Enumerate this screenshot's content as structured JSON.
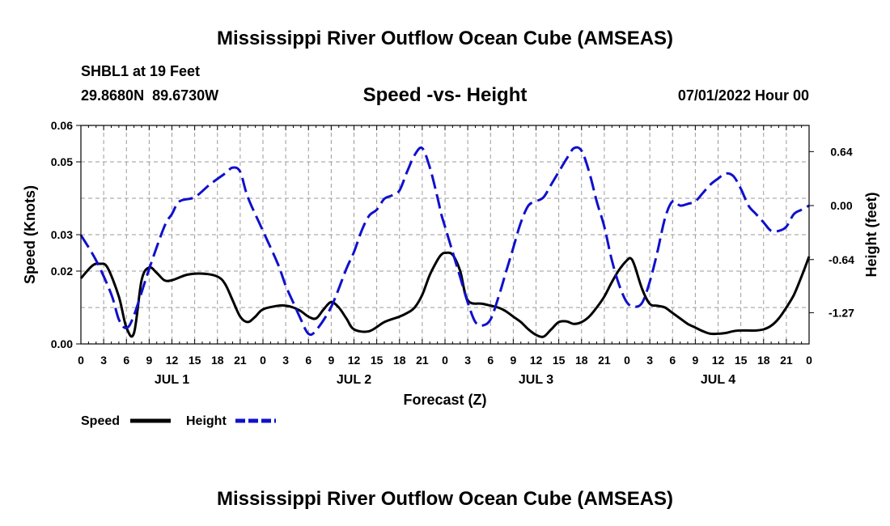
{
  "page": {
    "title": "Mississippi River Outflow Ocean Cube (AMSEAS)",
    "title_repeat": "Mississippi River Outflow Ocean Cube (AMSEAS)",
    "station": "SHBL1 at 19 Feet",
    "coords": "29.8680N  89.6730W",
    "subtitle": "Speed -vs- Height",
    "datetime": "07/01/2022 Hour 00"
  },
  "chart_data": {
    "type": "line",
    "title": "Speed -vs- Height",
    "xlabel": "Forecast (Z)",
    "ylabel": "Speed (Knots)",
    "y2label": "Height (feet)",
    "x_range": [
      0,
      96
    ],
    "ylim": [
      0,
      0.06
    ],
    "y2lim": [
      -1.64,
      0.95
    ],
    "grid": true,
    "x_tick_values": [
      0,
      3,
      6,
      9,
      12,
      15,
      18,
      21,
      24,
      27,
      30,
      33,
      36,
      39,
      42,
      45,
      48,
      51,
      54,
      57,
      60,
      63,
      66,
      69,
      72,
      75,
      78,
      81,
      84,
      87,
      90,
      93,
      96
    ],
    "x_tick_labels": [
      "0",
      "3",
      "6",
      "9",
      "12",
      "15",
      "18",
      "21",
      "0",
      "3",
      "6",
      "9",
      "12",
      "15",
      "18",
      "21",
      "0",
      "3",
      "6",
      "9",
      "12",
      "15",
      "18",
      "21",
      "0",
      "3",
      "6",
      "9",
      "12",
      "15",
      "18",
      "21",
      "0"
    ],
    "day_labels": [
      {
        "x": 12,
        "label": "JUL 1"
      },
      {
        "x": 36,
        "label": "JUL 2"
      },
      {
        "x": 60,
        "label": "JUL 3"
      },
      {
        "x": 84,
        "label": "JUL 4"
      }
    ],
    "y_ticks": [
      0,
      0.02,
      0.03,
      0.05,
      0.06
    ],
    "y_tick_labels": [
      "0.00",
      "0.02",
      "0.03",
      "0.05",
      "0.06"
    ],
    "y2_ticks": [
      0.64,
      0.0,
      -0.64,
      -1.27
    ],
    "y2_tick_labels": [
      "0.64",
      "0.00",
      "-0.64",
      "-1.27"
    ],
    "legend": [
      {
        "name": "Speed",
        "color": "#000000",
        "style": "solid"
      },
      {
        "name": "Height",
        "color": "#1010cc",
        "style": "dashed"
      }
    ],
    "series": [
      {
        "name": "Speed",
        "axis": "left",
        "color": "#000000",
        "style": "solid",
        "x": [
          0,
          1.5,
          2.5,
          3.5,
          5,
          6,
          7,
          8,
          9,
          10,
          11,
          12,
          14,
          16,
          18,
          19,
          20,
          21,
          22,
          23,
          24,
          26,
          27,
          28,
          29,
          30,
          31,
          32,
          33,
          34,
          35,
          36,
          38,
          40,
          42,
          43,
          44,
          45,
          46,
          47,
          47.5,
          48,
          49,
          50,
          51,
          53,
          55,
          56,
          57,
          58,
          59,
          60,
          61,
          62,
          63,
          64,
          65,
          66,
          67,
          68,
          69,
          70,
          71,
          72,
          72.5,
          73,
          74,
          75,
          76,
          77,
          78,
          79,
          80,
          81,
          82,
          83,
          84,
          85,
          86,
          87,
          88,
          89,
          90,
          91,
          92,
          93,
          94,
          95,
          96
        ],
        "values": [
          0.018,
          0.0215,
          0.022,
          0.021,
          0.013,
          0.0045,
          0.003,
          0.0175,
          0.021,
          0.0195,
          0.0175,
          0.0175,
          0.019,
          0.0193,
          0.0185,
          0.0165,
          0.012,
          0.0075,
          0.006,
          0.0075,
          0.0095,
          0.0105,
          0.0105,
          0.01,
          0.009,
          0.0075,
          0.007,
          0.0095,
          0.0115,
          0.01,
          0.007,
          0.004,
          0.0035,
          0.006,
          0.0075,
          0.0085,
          0.01,
          0.0135,
          0.019,
          0.023,
          0.0245,
          0.025,
          0.0245,
          0.02,
          0.012,
          0.011,
          0.01,
          0.009,
          0.0075,
          0.006,
          0.004,
          0.0025,
          0.002,
          0.004,
          0.006,
          0.0062,
          0.0055,
          0.006,
          0.0075,
          0.01,
          0.013,
          0.017,
          0.0205,
          0.023,
          0.0235,
          0.0215,
          0.015,
          0.011,
          0.0105,
          0.01,
          0.0085,
          0.007,
          0.0055,
          0.0045,
          0.0035,
          0.0028,
          0.0028,
          0.003,
          0.0035,
          0.0037,
          0.0037,
          0.0037,
          0.004,
          0.005,
          0.007,
          0.01,
          0.0135,
          0.0185,
          0.024
        ]
      },
      {
        "name": "Height",
        "axis": "right",
        "color": "#1010cc",
        "style": "dashed",
        "x": [
          0,
          2,
          4,
          5,
          6,
          7,
          9,
          11,
          12,
          13,
          15,
          17,
          19,
          20,
          21,
          22,
          24,
          26,
          27,
          28,
          29,
          30,
          31,
          33,
          35,
          36,
          37,
          38,
          39,
          40,
          41,
          42,
          43,
          44,
          45,
          46,
          47,
          47.5,
          48,
          49,
          50,
          51,
          52,
          53,
          54,
          55,
          56,
          57,
          58,
          59,
          60,
          61,
          62,
          63,
          64,
          65,
          66,
          67,
          68,
          69,
          70,
          71,
          72,
          73,
          74,
          75,
          76,
          77,
          78,
          79,
          80,
          81,
          82,
          83,
          84,
          85,
          86,
          87,
          88,
          89,
          90,
          91,
          92,
          93,
          94,
          95,
          96
        ],
        "values": [
          -0.35,
          -0.65,
          -1.05,
          -1.35,
          -1.45,
          -1.3,
          -0.75,
          -0.25,
          -0.1,
          0.05,
          0.1,
          0.25,
          0.38,
          0.45,
          0.4,
          0.1,
          -0.3,
          -0.7,
          -0.95,
          -1.15,
          -1.35,
          -1.52,
          -1.48,
          -1.2,
          -0.75,
          -0.55,
          -0.3,
          -0.12,
          -0.05,
          0.08,
          0.12,
          0.18,
          0.4,
          0.6,
          0.68,
          0.45,
          0.1,
          -0.1,
          -0.25,
          -0.55,
          -0.85,
          -1.15,
          -1.38,
          -1.42,
          -1.35,
          -1.1,
          -0.8,
          -0.5,
          -0.2,
          0.0,
          0.05,
          0.1,
          0.25,
          0.4,
          0.55,
          0.68,
          0.65,
          0.4,
          0.05,
          -0.25,
          -0.65,
          -0.95,
          -1.15,
          -1.2,
          -1.15,
          -0.9,
          -0.55,
          -0.15,
          0.05,
          0.0,
          0.02,
          0.05,
          0.15,
          0.25,
          0.32,
          0.38,
          0.35,
          0.2,
          0.0,
          -0.1,
          -0.2,
          -0.3,
          -0.3,
          -0.25,
          -0.1,
          -0.05,
          0.0
        ]
      }
    ]
  }
}
